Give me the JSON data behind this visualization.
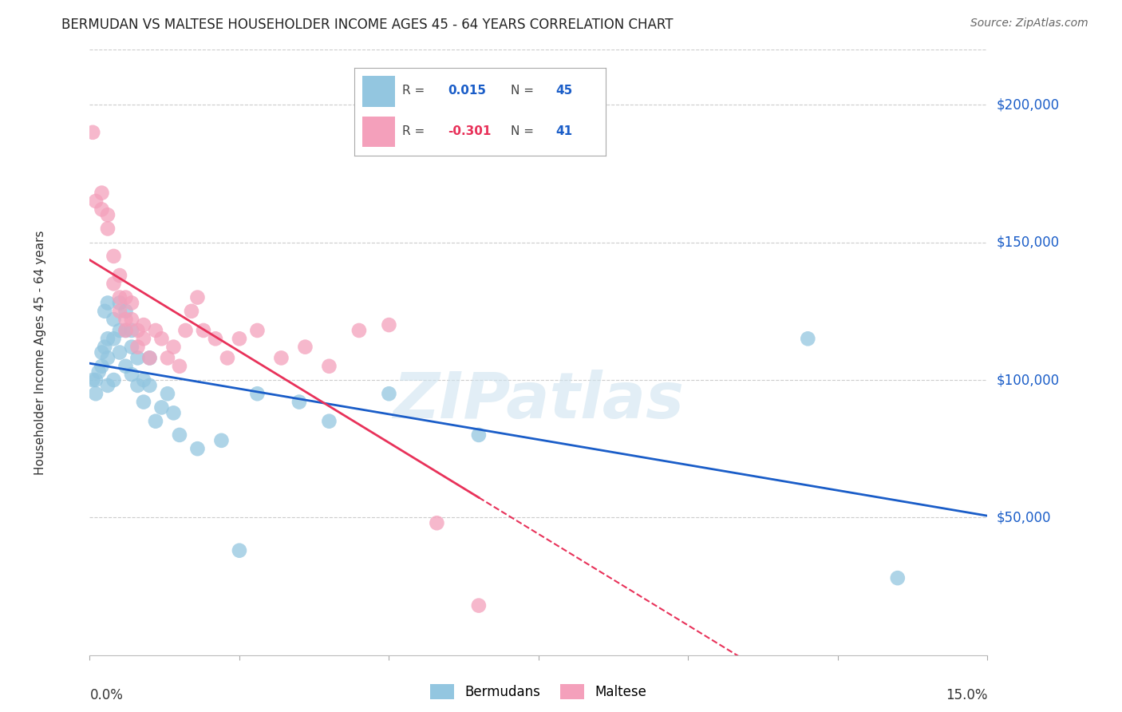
{
  "title": "BERMUDAN VS MALTESE HOUSEHOLDER INCOME AGES 45 - 64 YEARS CORRELATION CHART",
  "source": "Source: ZipAtlas.com",
  "ylabel": "Householder Income Ages 45 - 64 years",
  "ytick_labels": [
    "$50,000",
    "$100,000",
    "$150,000",
    "$200,000"
  ],
  "ytick_values": [
    50000,
    100000,
    150000,
    200000
  ],
  "xlim": [
    0.0,
    0.15
  ],
  "ylim": [
    0,
    220000
  ],
  "legend_R_blue": " 0.015",
  "legend_N_blue": "45",
  "legend_R_pink": "-0.301",
  "legend_N_pink": "41",
  "watermark": "ZIPatlas",
  "blue_color": "#93C6E0",
  "pink_color": "#F4A0BB",
  "blue_line_color": "#1A5DC8",
  "pink_line_color": "#E8325A",
  "bermudans_x": [
    0.0005,
    0.001,
    0.001,
    0.0015,
    0.002,
    0.002,
    0.0025,
    0.0025,
    0.003,
    0.003,
    0.003,
    0.003,
    0.004,
    0.004,
    0.004,
    0.005,
    0.005,
    0.005,
    0.006,
    0.006,
    0.006,
    0.007,
    0.007,
    0.007,
    0.008,
    0.008,
    0.009,
    0.009,
    0.01,
    0.01,
    0.011,
    0.012,
    0.013,
    0.014,
    0.015,
    0.018,
    0.022,
    0.025,
    0.028,
    0.035,
    0.04,
    0.05,
    0.065,
    0.12,
    0.135
  ],
  "bermudans_y": [
    100000,
    100000,
    95000,
    103000,
    110000,
    105000,
    125000,
    112000,
    128000,
    115000,
    108000,
    98000,
    122000,
    115000,
    100000,
    128000,
    118000,
    110000,
    125000,
    118000,
    105000,
    118000,
    112000,
    102000,
    108000,
    98000,
    100000,
    92000,
    98000,
    108000,
    85000,
    90000,
    95000,
    88000,
    80000,
    75000,
    78000,
    38000,
    95000,
    92000,
    85000,
    95000,
    80000,
    115000,
    28000
  ],
  "maltese_x": [
    0.0005,
    0.001,
    0.002,
    0.002,
    0.003,
    0.003,
    0.004,
    0.004,
    0.005,
    0.005,
    0.005,
    0.006,
    0.006,
    0.006,
    0.007,
    0.007,
    0.008,
    0.008,
    0.009,
    0.009,
    0.01,
    0.011,
    0.012,
    0.013,
    0.014,
    0.015,
    0.016,
    0.017,
    0.018,
    0.019,
    0.021,
    0.023,
    0.025,
    0.028,
    0.032,
    0.036,
    0.04,
    0.045,
    0.05,
    0.058,
    0.065
  ],
  "maltese_y": [
    190000,
    165000,
    168000,
    162000,
    160000,
    155000,
    135000,
    145000,
    130000,
    138000,
    125000,
    130000,
    122000,
    118000,
    128000,
    122000,
    118000,
    112000,
    120000,
    115000,
    108000,
    118000,
    115000,
    108000,
    112000,
    105000,
    118000,
    125000,
    130000,
    118000,
    115000,
    108000,
    115000,
    118000,
    108000,
    112000,
    105000,
    118000,
    120000,
    48000,
    18000
  ]
}
